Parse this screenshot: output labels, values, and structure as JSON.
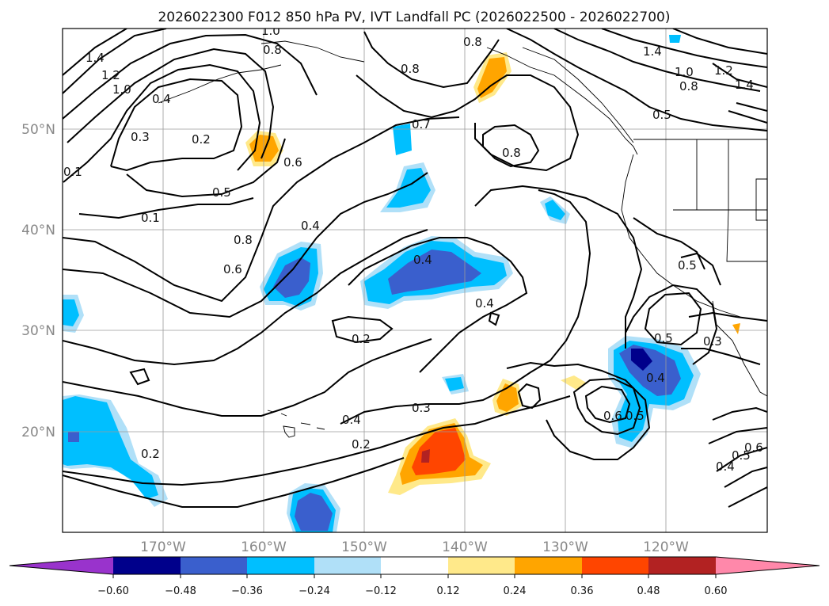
{
  "title": "2026022300 F012 850 hPa PV, IVT Landfall PC (2026022500 - 2026022700)",
  "map": {
    "lat_ticks": [
      "50°N",
      "40°N",
      "30°N",
      "20°N"
    ],
    "lon_ticks": [
      "170°W",
      "160°W",
      "150°W",
      "140°W",
      "130°W",
      "120°W"
    ],
    "extent": {
      "lon_min": -180,
      "lon_max": -110,
      "lat_min": 10,
      "lat_max": 60
    }
  },
  "colorbar": {
    "ticks": [
      "−0.60",
      "−0.48",
      "−0.36",
      "−0.24",
      "−0.12",
      "0.12",
      "0.24",
      "0.36",
      "0.48",
      "0.60"
    ],
    "colors": [
      "#9933cc",
      "#00008b",
      "#3a5fcd",
      "#00bfff",
      "#b0e0f8",
      "#ffffff",
      "#ffe98a",
      "#ffa500",
      "#ff4500",
      "#b22222",
      "#ff88aa"
    ]
  },
  "contour_labels": [
    "1.4",
    "1.2",
    "1.0",
    "0.4",
    "0.3",
    "0.2",
    "0.1",
    "0.5",
    "0.6",
    "0.8",
    "0.7",
    "0.8",
    "1.0",
    "0.8",
    "0.8",
    "1.4",
    "1.0",
    "0.8",
    "1.2",
    "1.4",
    "0.5",
    "0.6",
    "0.4",
    "0.8",
    "0.6",
    "0.4",
    "0.4",
    "0.2",
    "0.4",
    "0.3",
    "0.2",
    "0.2",
    "0.5",
    "0.4",
    "0.5",
    "0.6",
    "0.3",
    "0.4",
    "0.5",
    "0.5",
    "0.1"
  ]
}
